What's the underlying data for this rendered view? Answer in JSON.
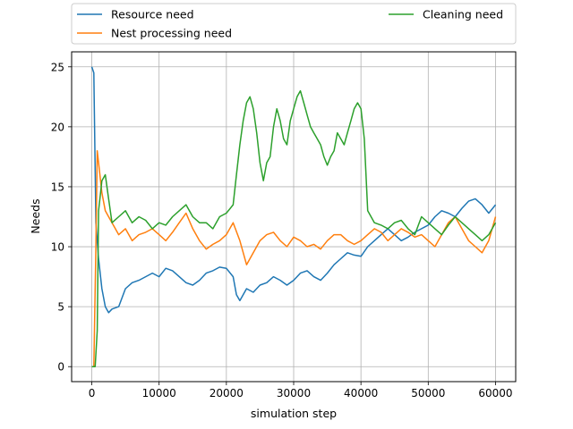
{
  "chart_data": {
    "type": "line",
    "title": "",
    "xlabel": "simulation step",
    "ylabel": "Needs",
    "xlim": [
      -3000,
      63000
    ],
    "ylim": [
      -1.25,
      26.25
    ],
    "xticks": [
      0,
      10000,
      20000,
      30000,
      40000,
      50000,
      60000
    ],
    "yticks": [
      0,
      5,
      10,
      15,
      20,
      25
    ],
    "grid": true,
    "legend": {
      "placement": "above-plot",
      "entries": [
        "Resource need",
        "Nest processing need",
        "Cleaning need"
      ]
    },
    "series": [
      {
        "name": "Resource need",
        "color": "#1f77b4",
        "x": [
          0,
          300,
          600,
          1000,
          1500,
          2000,
          2500,
          3000,
          4000,
          5000,
          6000,
          7000,
          8000,
          9000,
          10000,
          11000,
          12000,
          13000,
          14000,
          15000,
          16000,
          17000,
          18000,
          19000,
          20000,
          21000,
          21500,
          22000,
          23000,
          24000,
          25000,
          26000,
          27000,
          28000,
          29000,
          30000,
          31000,
          32000,
          33000,
          34000,
          35000,
          36000,
          37000,
          38000,
          39000,
          40000,
          41000,
          42000,
          43000,
          44000,
          45000,
          46000,
          47000,
          48000,
          49000,
          50000,
          51000,
          52000,
          53000,
          54000,
          55000,
          56000,
          57000,
          58000,
          59000,
          60000
        ],
        "values": [
          25,
          24.5,
          12,
          9,
          6.5,
          5,
          4.5,
          4.8,
          5,
          6.5,
          7,
          7.2,
          7.5,
          7.8,
          7.5,
          8.2,
          8,
          7.5,
          7,
          6.8,
          7.2,
          7.8,
          8,
          8.3,
          8.2,
          7.5,
          6,
          5.5,
          6.5,
          6.2,
          6.8,
          7,
          7.5,
          7.2,
          6.8,
          7.2,
          7.8,
          8,
          7.5,
          7.2,
          7.8,
          8.5,
          9,
          9.5,
          9.3,
          9.2,
          10,
          10.5,
          11,
          11.5,
          11,
          10.5,
          10.8,
          11.2,
          11.5,
          11.8,
          12.5,
          13,
          12.8,
          12.5,
          13.2,
          13.8,
          14,
          13.5,
          12.8,
          13.5
        ]
      },
      {
        "name": "Nest processing need",
        "color": "#ff7f0e",
        "x": [
          0,
          300,
          600,
          800,
          1000,
          1500,
          2000,
          2500,
          3000,
          4000,
          5000,
          6000,
          7000,
          8000,
          9000,
          10000,
          11000,
          12000,
          13000,
          14000,
          15000,
          16000,
          17000,
          18000,
          19000,
          20000,
          21000,
          22000,
          23000,
          24000,
          25000,
          26000,
          27000,
          28000,
          29000,
          30000,
          31000,
          32000,
          33000,
          34000,
          35000,
          36000,
          37000,
          38000,
          39000,
          40000,
          41000,
          42000,
          43000,
          44000,
          45000,
          46000,
          47000,
          48000,
          49000,
          50000,
          51000,
          52000,
          53000,
          54000,
          55000,
          56000,
          57000,
          58000,
          59000,
          60000
        ],
        "values": [
          0,
          0,
          10,
          18,
          17,
          14.5,
          13,
          12.5,
          12,
          11,
          11.5,
          10.5,
          11,
          11.2,
          11.5,
          11,
          10.5,
          11.2,
          12,
          12.8,
          11.5,
          10.5,
          9.8,
          10.2,
          10.5,
          11,
          12,
          10.5,
          8.5,
          9.5,
          10.5,
          11,
          11.2,
          10.5,
          10,
          10.8,
          10.5,
          10,
          10.2,
          9.8,
          10.5,
          11,
          11,
          10.5,
          10.2,
          10.5,
          11,
          11.5,
          11.2,
          10.5,
          11,
          11.5,
          11.2,
          10.8,
          11,
          10.5,
          10,
          11,
          12,
          12.5,
          11.5,
          10.5,
          10,
          9.5,
          10.5,
          12.5
        ]
      },
      {
        "name": "Cleaning need",
        "color": "#2ca02c",
        "x": [
          0,
          500,
          800,
          1000,
          1200,
          1500,
          2000,
          2500,
          3000,
          4000,
          5000,
          6000,
          7000,
          8000,
          9000,
          10000,
          11000,
          12000,
          13000,
          14000,
          15000,
          16000,
          17000,
          18000,
          19000,
          20000,
          21000,
          21500,
          22000,
          22500,
          23000,
          23500,
          24000,
          24500,
          25000,
          25500,
          26000,
          26500,
          27000,
          27500,
          28000,
          28500,
          29000,
          29500,
          30000,
          30500,
          31000,
          31500,
          32000,
          32500,
          33000,
          33500,
          34000,
          34500,
          35000,
          35500,
          36000,
          36500,
          37000,
          37500,
          38000,
          38500,
          39000,
          39500,
          40000,
          40500,
          41000,
          42000,
          43000,
          44000,
          45000,
          46000,
          47000,
          48000,
          49000,
          50000,
          51000,
          52000,
          53000,
          54000,
          55000,
          56000,
          57000,
          58000,
          59000,
          60000
        ],
        "values": [
          0,
          0,
          3,
          13,
          14,
          15.5,
          16,
          14,
          12,
          12.5,
          13,
          12,
          12.5,
          12.2,
          11.5,
          12,
          11.8,
          12.5,
          13,
          13.5,
          12.5,
          12,
          12,
          11.5,
          12.5,
          12.8,
          13.5,
          16,
          18.5,
          20.5,
          22,
          22.5,
          21.5,
          19.5,
          17,
          15.5,
          17,
          17.5,
          20,
          21.5,
          20.5,
          19,
          18.5,
          20.5,
          21.5,
          22.5,
          23,
          22,
          21,
          20,
          19.5,
          19,
          18.5,
          17.5,
          16.8,
          17.5,
          18,
          19.5,
          19,
          18.5,
          19.5,
          20.5,
          21.5,
          22,
          21.5,
          19,
          13,
          12,
          11.8,
          11.5,
          12,
          12.2,
          11.5,
          11,
          12.5,
          12,
          11.5,
          11,
          11.8,
          12.5,
          12,
          11.5,
          11,
          10.5,
          11,
          12
        ]
      }
    ]
  }
}
